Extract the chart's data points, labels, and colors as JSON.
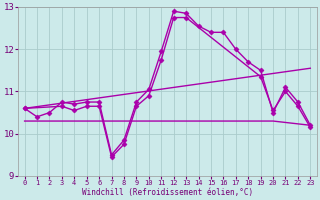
{
  "background_color": "#cceaea",
  "line_color": "#aa00aa",
  "grid_color": "#aacccc",
  "xlabel": "Windchill (Refroidissement éolien,°C)",
  "xlim": [
    -0.5,
    23.5
  ],
  "ylim": [
    9,
    13
  ],
  "yticks": [
    9,
    10,
    11,
    12,
    13
  ],
  "xticks": [
    0,
    1,
    2,
    3,
    4,
    5,
    6,
    7,
    8,
    9,
    10,
    11,
    12,
    13,
    14,
    15,
    16,
    17,
    18,
    19,
    20,
    21,
    22,
    23
  ],
  "series": [
    {
      "x": [
        0,
        1,
        2,
        3,
        4,
        5,
        6,
        7,
        8,
        9,
        10,
        11,
        12,
        13,
        14,
        15,
        16,
        17,
        18,
        19,
        20,
        21,
        22,
        23
      ],
      "y": [
        10.6,
        10.4,
        10.5,
        10.75,
        10.7,
        10.75,
        10.75,
        9.5,
        9.85,
        10.75,
        11.05,
        11.95,
        12.9,
        12.85,
        12.55,
        12.4,
        12.4,
        12.0,
        11.7,
        11.5,
        10.5,
        11.1,
        10.75,
        10.2
      ],
      "marker": "D",
      "markersize": 2.5,
      "linewidth": 1.0
    },
    {
      "x": [
        0,
        3,
        4,
        5,
        6,
        7,
        8,
        9,
        10,
        11,
        12,
        13,
        19,
        20,
        21,
        22,
        23
      ],
      "y": [
        10.6,
        10.65,
        10.55,
        10.65,
        10.65,
        9.45,
        9.75,
        10.65,
        10.9,
        11.75,
        12.75,
        12.75,
        11.35,
        10.55,
        11.0,
        10.65,
        10.15
      ],
      "marker": "D",
      "markersize": 2.5,
      "linewidth": 1.0
    },
    {
      "x": [
        0,
        23
      ],
      "y": [
        10.6,
        11.55
      ],
      "marker": null,
      "markersize": 0,
      "linewidth": 1.0
    },
    {
      "x": [
        0,
        20,
        23
      ],
      "y": [
        10.3,
        10.3,
        10.2
      ],
      "marker": null,
      "markersize": 0,
      "linewidth": 1.0
    }
  ]
}
